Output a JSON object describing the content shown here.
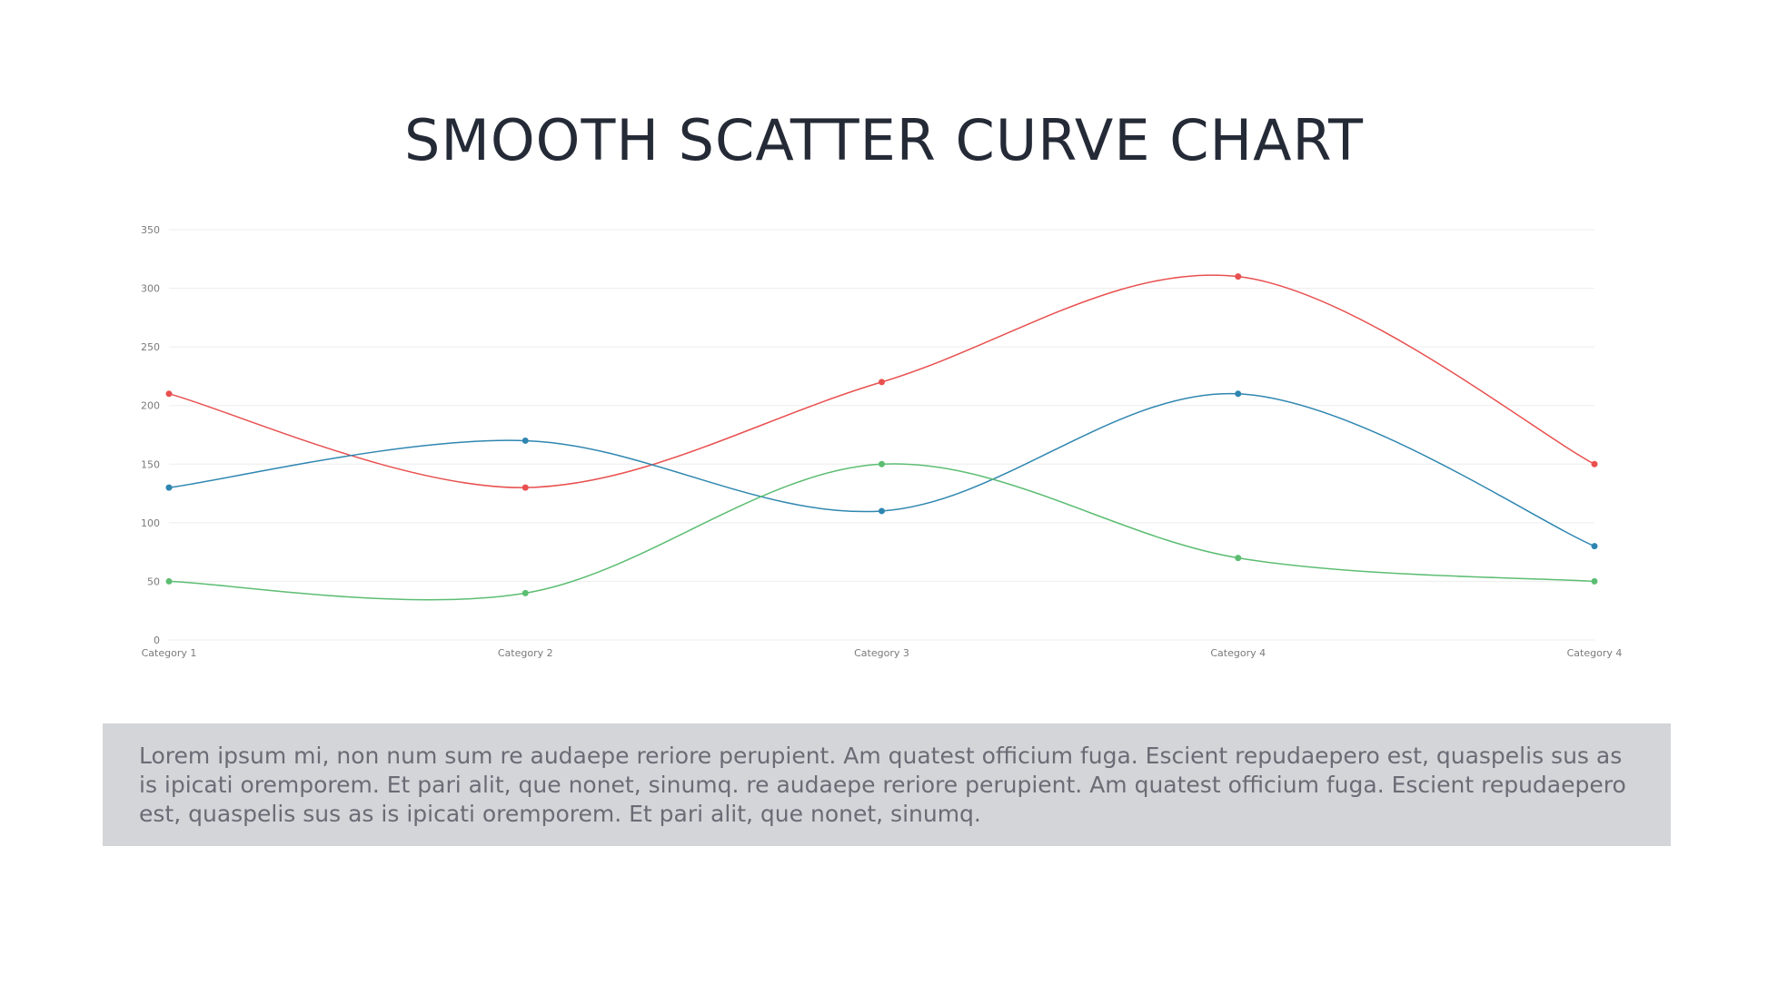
{
  "title": "SMOOTH SCATTER CURVE CHART",
  "description": "Lorem ipsum mi, non num sum re audaepe reriore perupient. Am quatest officium fuga. Escient repudaepero est, quaspelis sus as is ipicati oremporem. Et pari alit, que nonet, sinumq. re audaepe reriore perupient. Am quatest officium fuga. Escient repudaepero est, quaspelis sus as is ipicati oremporem. Et pari alit, que nonet, sinumq.",
  "chart_data": {
    "type": "scatter",
    "smooth": true,
    "title": "",
    "xlabel": "",
    "ylabel": "",
    "categories": [
      "Category 1",
      "Category 2",
      "Category 3",
      "Category 4",
      "Category 4"
    ],
    "ylim": [
      0,
      350
    ],
    "yticks": [
      0,
      50,
      100,
      150,
      200,
      250,
      300,
      350
    ],
    "grid": true,
    "legend": "none",
    "series": [
      {
        "color": "#e8504f",
        "values": [
          210,
          130,
          220,
          310,
          150
        ]
      },
      {
        "color": "#2e86b0",
        "values": [
          130,
          170,
          110,
          210,
          80
        ]
      },
      {
        "color": "#5cbd72",
        "values": [
          50,
          40,
          150,
          70,
          50
        ]
      }
    ]
  }
}
